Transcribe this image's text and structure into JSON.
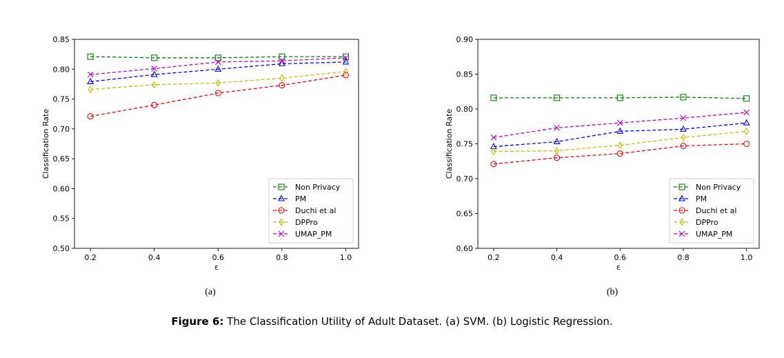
{
  "chart_data": [
    {
      "type": "line",
      "xlabel": "ε",
      "ylabel": "Classification Rate",
      "x": [
        0.2,
        0.4,
        0.6,
        0.8,
        1.0
      ],
      "xticks": [
        "0.2",
        "0.4",
        "0.6",
        "0.8",
        "1.0"
      ],
      "ylim": [
        0.5,
        0.85
      ],
      "yticks": [
        "0.50",
        "0.55",
        "0.60",
        "0.65",
        "0.70",
        "0.75",
        "0.80",
        "0.85"
      ],
      "legend_position": "lower-right",
      "sublabel": "(a)",
      "series": [
        {
          "name": "Non Privacy",
          "values": [
            0.821,
            0.819,
            0.819,
            0.821,
            0.821
          ],
          "color": "#008000",
          "marker": "square"
        },
        {
          "name": "PM",
          "values": [
            0.779,
            0.791,
            0.8,
            0.809,
            0.812
          ],
          "color": "#0000ff",
          "marker": "triangle"
        },
        {
          "name": "Duchi et al",
          "values": [
            0.721,
            0.74,
            0.76,
            0.773,
            0.79
          ],
          "color": "#ff0000",
          "marker": "circle"
        },
        {
          "name": "DPPro",
          "values": [
            0.766,
            0.774,
            0.777,
            0.785,
            0.796
          ],
          "color": "#bfbf00",
          "marker": "diamond"
        },
        {
          "name": "UMAP_PM",
          "values": [
            0.791,
            0.801,
            0.812,
            0.814,
            0.819
          ],
          "color": "#bf00bf",
          "marker": "x"
        }
      ]
    },
    {
      "type": "line",
      "xlabel": "ε",
      "ylabel": "Classification Rate",
      "x": [
        0.2,
        0.4,
        0.6,
        0.8,
        1.0
      ],
      "xticks": [
        "0.2",
        "0.4",
        "0.6",
        "0.8",
        "1.0"
      ],
      "ylim": [
        0.6,
        0.9
      ],
      "yticks": [
        "0.60",
        "0.65",
        "0.70",
        "0.75",
        "0.80",
        "0.85",
        "0.90"
      ],
      "legend_position": "lower-right",
      "sublabel": "(b)",
      "series": [
        {
          "name": "Non Privacy",
          "values": [
            0.816,
            0.816,
            0.816,
            0.817,
            0.815
          ],
          "color": "#008000",
          "marker": "square"
        },
        {
          "name": "PM",
          "values": [
            0.746,
            0.753,
            0.768,
            0.771,
            0.78
          ],
          "color": "#0000ff",
          "marker": "triangle"
        },
        {
          "name": "Duchi et al",
          "values": [
            0.721,
            0.73,
            0.736,
            0.747,
            0.75
          ],
          "color": "#ff0000",
          "marker": "circle"
        },
        {
          "name": "DPPro",
          "values": [
            0.739,
            0.74,
            0.748,
            0.759,
            0.768
          ],
          "color": "#bfbf00",
          "marker": "diamond"
        },
        {
          "name": "UMAP_PM",
          "values": [
            0.759,
            0.773,
            0.78,
            0.787,
            0.795
          ],
          "color": "#bf00bf",
          "marker": "x"
        }
      ]
    }
  ],
  "caption": {
    "label": "Figure 6:",
    "text": " The Classification Utility of Adult Dataset. (a) SVM. (b) Logistic Regression."
  }
}
